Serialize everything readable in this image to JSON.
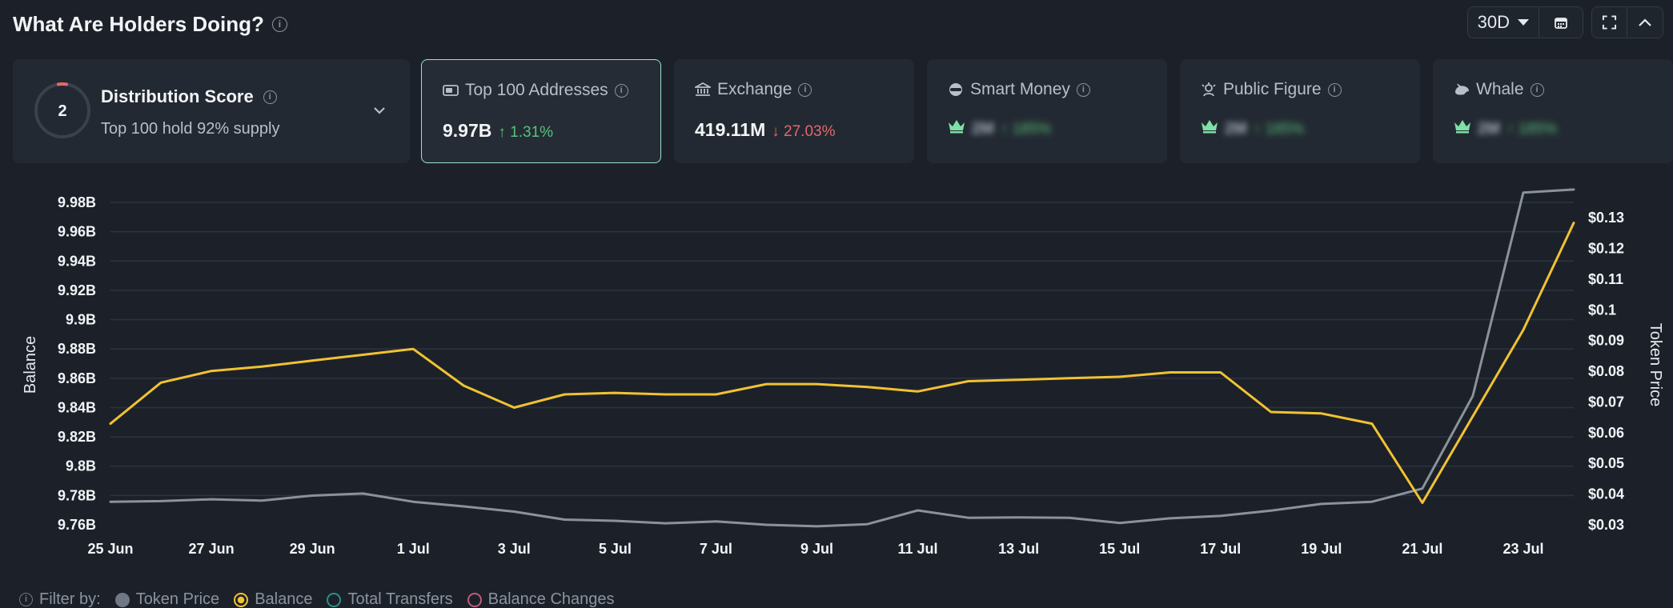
{
  "header": {
    "title": "What Are Holders Doing?",
    "period": "30D"
  },
  "colors": {
    "balance": "#f1c232",
    "token_price": "#8a929c",
    "up": "#58c27a",
    "down": "#e5676b",
    "selected_border": "#9fe3c9"
  },
  "distribution": {
    "score": "2",
    "title": "Distribution Score",
    "subtitle": "Top 100 hold 92% supply"
  },
  "cards": [
    {
      "label": "Top 100 Addresses",
      "icon": "wallet-icon",
      "value": "9.97B",
      "change": "1.31%",
      "direction": "up"
    },
    {
      "label": "Exchange",
      "icon": "bank-icon",
      "value": "419.11M",
      "change": "27.03%",
      "direction": "down"
    },
    {
      "label": "Smart Money",
      "icon": "smart-money-icon",
      "value": "2M",
      "change": "185%",
      "direction": "up",
      "blurred": true
    },
    {
      "label": "Public Figure",
      "icon": "public-figure-icon",
      "value": "2M",
      "change": "185%",
      "direction": "up",
      "blurred": true
    },
    {
      "label": "Whale",
      "icon": "whale-icon",
      "value": "2M",
      "change": "185%",
      "direction": "up",
      "blurred": true
    }
  ],
  "chart_data": {
    "type": "line",
    "x": [
      "25 Jun",
      "26 Jun",
      "27 Jun",
      "28 Jun",
      "29 Jun",
      "30 Jun",
      "1 Jul",
      "2 Jul",
      "3 Jul",
      "4 Jul",
      "5 Jul",
      "6 Jul",
      "7 Jul",
      "8 Jul",
      "9 Jul",
      "10 Jul",
      "11 Jul",
      "12 Jul",
      "13 Jul",
      "14 Jul",
      "15 Jul",
      "16 Jul",
      "17 Jul",
      "18 Jul",
      "19 Jul",
      "20 Jul",
      "21 Jul",
      "22 Jul",
      "23 Jul",
      "24 Jul"
    ],
    "x_tick_labels": [
      "25 Jun",
      "27 Jun",
      "29 Jun",
      "1 Jul",
      "3 Jul",
      "5 Jul",
      "7 Jul",
      "9 Jul",
      "11 Jul",
      "13 Jul",
      "15 Jul",
      "17 Jul",
      "19 Jul",
      "21 Jul",
      "23 Jul"
    ],
    "ylabel": "Balance",
    "ylabel_right": "Token Price",
    "y_ticks": [
      "9.76B",
      "9.78B",
      "9.8B",
      "9.82B",
      "9.84B",
      "9.86B",
      "9.88B",
      "9.9B",
      "9.92B",
      "9.94B",
      "9.96B",
      "9.98B"
    ],
    "y_ticks_right": [
      "$0.03",
      "$0.04",
      "$0.05",
      "$0.06",
      "$0.07",
      "$0.08",
      "$0.09",
      "$0.1",
      "$0.11",
      "$0.12",
      "$0.13"
    ],
    "ylim": [
      9.76,
      9.98
    ],
    "ylim_right": [
      0.03,
      0.135
    ],
    "grid": true,
    "series": [
      {
        "name": "Balance",
        "axis": "left",
        "values": [
          9.829,
          9.857,
          9.865,
          9.868,
          9.872,
          9.876,
          9.88,
          9.855,
          9.84,
          9.849,
          9.85,
          9.849,
          9.849,
          9.856,
          9.856,
          9.854,
          9.851,
          9.858,
          9.859,
          9.86,
          9.861,
          9.864,
          9.864,
          9.837,
          9.836,
          9.829,
          9.775,
          9.834,
          9.893,
          9.966
        ]
      },
      {
        "name": "Token Price",
        "axis": "right",
        "values": [
          0.0375,
          0.0377,
          0.0383,
          0.0379,
          0.0395,
          0.0402,
          0.0375,
          0.036,
          0.0343,
          0.0317,
          0.0313,
          0.0305,
          0.0311,
          0.03,
          0.0295,
          0.0302,
          0.0347,
          0.0323,
          0.0324,
          0.0323,
          0.0306,
          0.0321,
          0.0329,
          0.0346,
          0.0368,
          0.0375,
          0.0418,
          0.072,
          0.1382,
          0.1392
        ]
      }
    ]
  },
  "filter": {
    "label": "Filter by:",
    "options": [
      {
        "label": "Token Price",
        "state": "filled-gray"
      },
      {
        "label": "Balance",
        "state": "selected"
      },
      {
        "label": "Total Transfers",
        "state": "outline-teal"
      },
      {
        "label": "Balance Changes",
        "state": "outline-pink"
      }
    ]
  }
}
